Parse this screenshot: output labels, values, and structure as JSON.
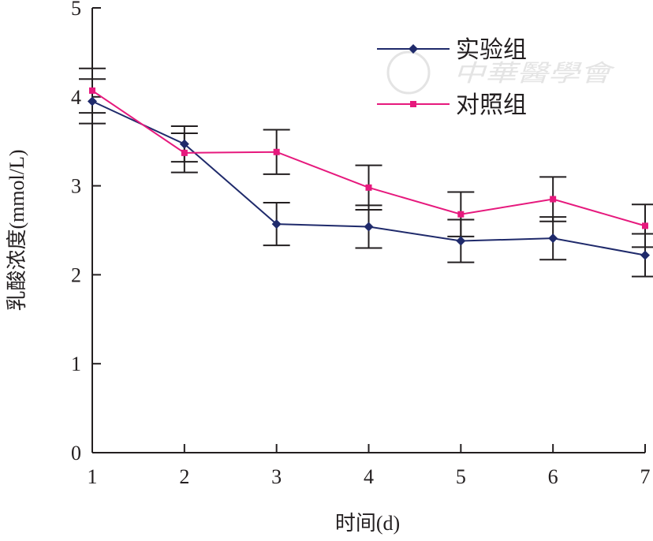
{
  "chart_data": {
    "type": "line",
    "title": "",
    "xlabel": "时间(d)",
    "ylabel": "乳酸浓度(mmol/L)",
    "x": [
      1,
      2,
      3,
      4,
      5,
      6,
      7
    ],
    "xlim": [
      1,
      7
    ],
    "ylim": [
      0,
      5
    ],
    "xticks": [
      "1",
      "2",
      "3",
      "4",
      "5",
      "6",
      "7"
    ],
    "yticks": [
      "0",
      "1",
      "2",
      "3",
      "4",
      "5"
    ],
    "grid": false,
    "legend_position": "top-right",
    "series": [
      {
        "name": "实验组",
        "color": "#1f2a6b",
        "marker": "diamond",
        "values": [
          3.95,
          3.47,
          2.57,
          2.54,
          2.38,
          2.41,
          2.22
        ],
        "error": [
          0.25,
          0.2,
          0.24,
          0.24,
          0.24,
          0.24,
          0.24
        ]
      },
      {
        "name": "对照组",
        "color": "#e6197d",
        "marker": "square",
        "values": [
          4.07,
          3.37,
          3.38,
          2.98,
          2.68,
          2.85,
          2.55
        ],
        "error": [
          0.25,
          0.22,
          0.25,
          0.25,
          0.25,
          0.25,
          0.24
        ]
      }
    ],
    "watermark": "中華醫學會"
  }
}
